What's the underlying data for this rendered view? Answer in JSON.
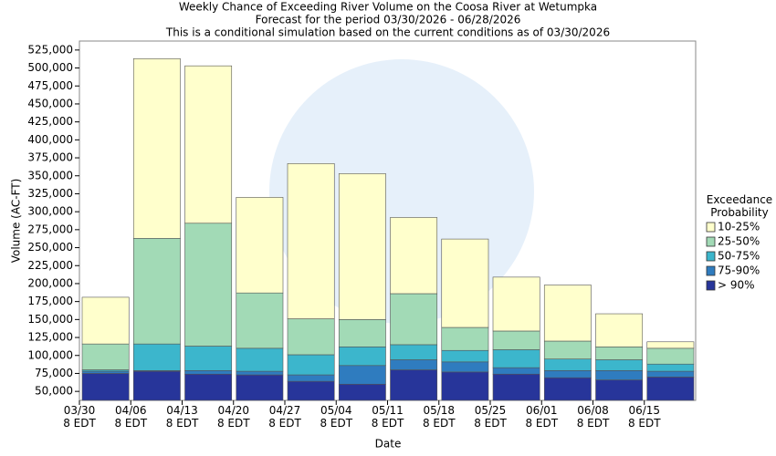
{
  "chart_data": {
    "type": "band",
    "title": "Weekly Chance of Exceeding River Volume on the Coosa River at Wetumpka",
    "subtitle": "Forecast for the period 03/30/2026 - 06/28/2026",
    "subtitle2": "This is a conditional simulation based on the current conditions as of 03/30/2026",
    "y_label": "Volume (AC-FT)",
    "x_label": "Date",
    "legend_title": "Exceedance Probability",
    "categories": [
      "03/30 8 EDT",
      "04/06 8 EDT",
      "04/13 8 EDT",
      "04/20 8 EDT",
      "04/27 8 EDT",
      "05/04 8 EDT",
      "05/11 8 EDT",
      "05/18 8 EDT",
      "05/25 8 EDT",
      "06/01 8 EDT",
      "06/08 8 EDT",
      "06/15 8 EDT"
    ],
    "series": [
      {
        "name": "> 90%",
        "color": "#27359a",
        "values": [
          75000,
          78000,
          74000,
          73000,
          64000,
          60000,
          80000,
          77000,
          74000,
          69000,
          66000,
          70000
        ]
      },
      {
        "name": "75-90%",
        "color": "#2f7cbf",
        "values": [
          78000,
          79000,
          79000,
          78000,
          73000,
          86000,
          94000,
          91000,
          83000,
          79000,
          79000,
          78000
        ]
      },
      {
        "name": "50-75%",
        "color": "#3cb6cc",
        "values": [
          80000,
          116000,
          113000,
          110000,
          101000,
          112000,
          115000,
          107000,
          108000,
          95000,
          94000,
          88000
        ]
      },
      {
        "name": "25-50%",
        "color": "#a2dab6",
        "values": [
          116000,
          263000,
          284000,
          187000,
          151000,
          150000,
          186000,
          139000,
          134000,
          120000,
          112000,
          110000
        ]
      },
      {
        "name": "10-25%",
        "color": "#ffffcc",
        "values": [
          181000,
          513000,
          503000,
          320000,
          367000,
          353000,
          292000,
          262000,
          209000,
          198000,
          158000,
          119000
        ]
      }
    ],
    "ylim": [
      37500,
      537500
    ],
    "yticks": [
      {
        "value": 50000,
        "label": "50,000"
      },
      {
        "value": 75000,
        "label": "75,000"
      },
      {
        "value": 100000,
        "label": "100,000"
      },
      {
        "value": 125000,
        "label": "125,000"
      },
      {
        "value": 150000,
        "label": "150,000"
      },
      {
        "value": 175000,
        "label": "175,000"
      },
      {
        "value": 200000,
        "label": "200,000"
      },
      {
        "value": 225000,
        "label": "225,000"
      },
      {
        "value": 250000,
        "label": "250,000"
      },
      {
        "value": 275000,
        "label": "275,000"
      },
      {
        "value": 300000,
        "label": "300,000"
      },
      {
        "value": 325000,
        "label": "325,000"
      },
      {
        "value": 350000,
        "label": "350,000"
      },
      {
        "value": 375000,
        "label": "375,000"
      },
      {
        "value": 400000,
        "label": "400,000"
      },
      {
        "value": 425000,
        "label": "425,000"
      },
      {
        "value": 450000,
        "label": "450,000"
      },
      {
        "value": 475000,
        "label": "475,000"
      },
      {
        "value": 500000,
        "label": "500,000"
      },
      {
        "value": 525000,
        "label": "525,000"
      }
    ],
    "legend": "right"
  }
}
